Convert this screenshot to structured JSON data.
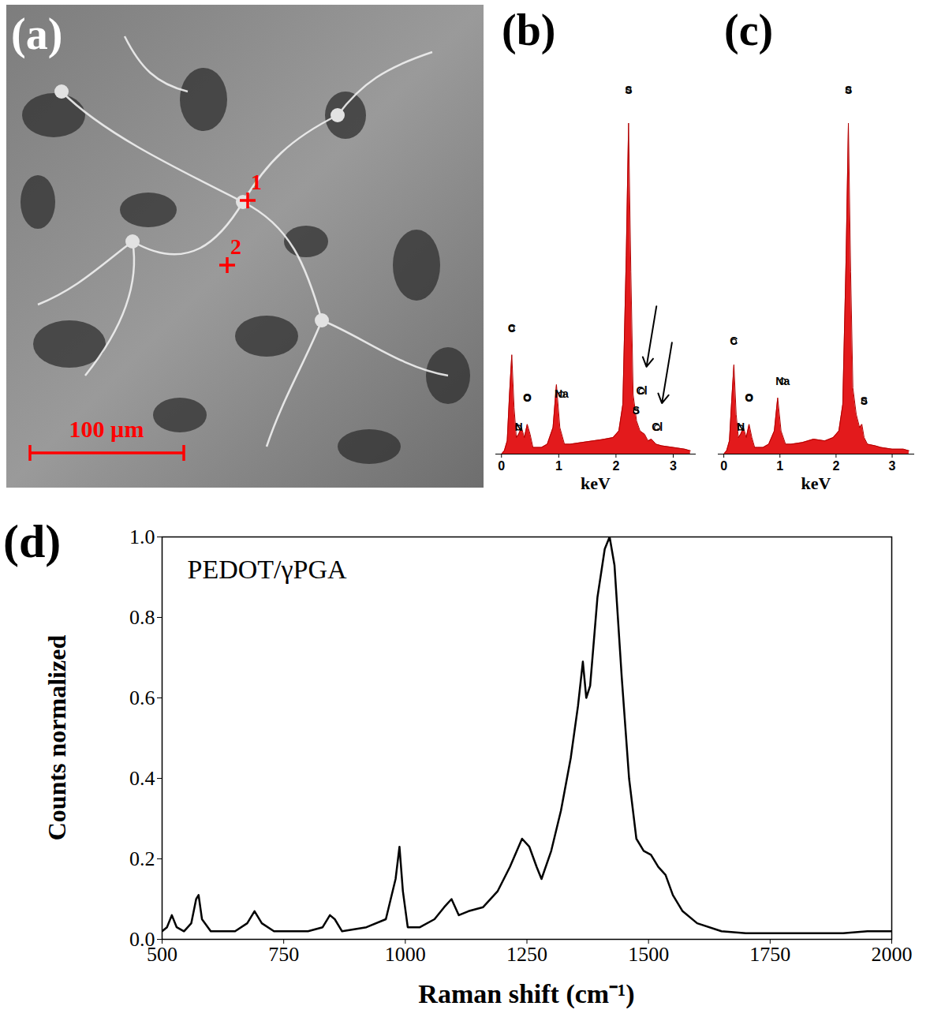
{
  "chart_data": [
    {
      "type": "image",
      "panel": "(a)",
      "markers": [
        "1",
        "2"
      ],
      "scale_bar": "100 µm"
    },
    {
      "type": "area",
      "panel": "(b)",
      "color": "#e31a1c",
      "xlabel": "keV",
      "tick_labels": "x",
      "xlim": [
        -0.1,
        3.4
      ],
      "ylim": [
        0,
        118
      ],
      "xticks": [
        0,
        1,
        2,
        3
      ],
      "x": [
        0,
        0.05,
        0.1,
        0.14,
        0.18,
        0.22,
        0.26,
        0.3,
        0.35,
        0.4,
        0.45,
        0.5,
        0.55,
        0.6,
        0.7,
        0.8,
        0.9,
        0.96,
        1.02,
        1.1,
        1.2,
        1.4,
        1.6,
        1.8,
        1.95,
        2.05,
        2.12,
        2.18,
        2.22,
        2.26,
        2.3,
        2.36,
        2.42,
        2.5,
        2.56,
        2.62,
        2.7,
        2.8,
        3.0,
        3.2,
        3.3
      ],
      "values": [
        0,
        1,
        4,
        18,
        30,
        14,
        5,
        6,
        8,
        5,
        9,
        6,
        2,
        2,
        2,
        3,
        8,
        21,
        8,
        3,
        3,
        3.5,
        4,
        4.5,
        5,
        7,
        15,
        60,
        100,
        55,
        18,
        10,
        7,
        6,
        4,
        4.5,
        3,
        2.5,
        2,
        1.5,
        1
      ],
      "annotations": [
        {
          "text": "C",
          "x": 0.18,
          "y": 38
        },
        {
          "text": "N",
          "x": 0.3,
          "y": 8
        },
        {
          "text": "O",
          "x": 0.45,
          "y": 17
        },
        {
          "text": "Na",
          "x": 1.05,
          "y": 18
        },
        {
          "text": "S",
          "x": 2.22,
          "y": 110
        },
        {
          "text": "Cl",
          "x": 2.45,
          "y": 19
        },
        {
          "text": "S",
          "x": 2.35,
          "y": 13
        },
        {
          "text": "Cl",
          "x": 2.72,
          "y": 8
        }
      ]
    },
    {
      "type": "area",
      "panel": "(c)",
      "color": "#e31a1c",
      "xlabel": "keV",
      "tick_labels": "x",
      "xlim": [
        -0.1,
        3.4
      ],
      "ylim": [
        0,
        118
      ],
      "xticks": [
        0,
        1,
        2,
        3
      ],
      "x": [
        0,
        0.05,
        0.1,
        0.14,
        0.18,
        0.22,
        0.26,
        0.3,
        0.35,
        0.4,
        0.45,
        0.5,
        0.55,
        0.6,
        0.7,
        0.8,
        0.9,
        0.96,
        1.02,
        1.1,
        1.2,
        1.4,
        1.6,
        1.8,
        1.95,
        2.05,
        2.12,
        2.18,
        2.22,
        2.26,
        2.3,
        2.36,
        2.42,
        2.46,
        2.5,
        2.56,
        2.7,
        2.8,
        3.0,
        3.2,
        3.3
      ],
      "values": [
        0,
        1,
        4,
        16,
        27,
        12,
        5,
        6,
        8,
        5,
        9,
        5,
        2,
        2,
        2,
        3,
        7,
        17,
        7,
        3,
        3,
        3.5,
        4.5,
        4,
        5,
        7,
        15,
        60,
        100,
        55,
        20,
        12,
        8,
        9,
        5,
        3,
        2.5,
        2,
        1.5,
        1.5,
        1
      ],
      "annotations": [
        {
          "text": "C",
          "x": 0.18,
          "y": 34
        },
        {
          "text": "N",
          "x": 0.3,
          "y": 8
        },
        {
          "text": "O",
          "x": 0.45,
          "y": 17
        },
        {
          "text": "Na",
          "x": 1.05,
          "y": 22
        },
        {
          "text": "S",
          "x": 2.22,
          "y": 110
        },
        {
          "text": "S",
          "x": 2.5,
          "y": 16
        }
      ]
    },
    {
      "type": "line",
      "panel": "(d)",
      "title": "PEDOT/γPGA",
      "color": "#000000",
      "xlabel": "Raman shift (cm⁻¹)",
      "ylabel": "Counts normalized",
      "xlim": [
        500,
        2000
      ],
      "ylim": [
        0,
        1
      ],
      "xticks": [
        500,
        750,
        1000,
        1250,
        1500,
        1750,
        2000
      ],
      "yticks": [
        {
          "value": 0,
          "label": "0.0"
        },
        0.2,
        0.4,
        0.6,
        0.8,
        {
          "value": 1,
          "label": "1.0"
        }
      ],
      "x": [
        500,
        510,
        520,
        530,
        545,
        560,
        570,
        575,
        582,
        600,
        650,
        675,
        690,
        705,
        730,
        800,
        830,
        845,
        855,
        870,
        920,
        960,
        980,
        988,
        995,
        1005,
        1030,
        1060,
        1080,
        1095,
        1110,
        1130,
        1160,
        1190,
        1215,
        1240,
        1255,
        1270,
        1280,
        1300,
        1320,
        1340,
        1355,
        1365,
        1372,
        1380,
        1395,
        1410,
        1420,
        1430,
        1445,
        1460,
        1475,
        1490,
        1505,
        1520,
        1535,
        1550,
        1570,
        1600,
        1650,
        1700,
        1800,
        1900,
        1950,
        1990,
        2000
      ],
      "values": [
        0.02,
        0.03,
        0.06,
        0.03,
        0.02,
        0.04,
        0.1,
        0.11,
        0.05,
        0.02,
        0.02,
        0.04,
        0.07,
        0.04,
        0.02,
        0.02,
        0.03,
        0.06,
        0.05,
        0.02,
        0.03,
        0.05,
        0.15,
        0.23,
        0.12,
        0.03,
        0.03,
        0.05,
        0.08,
        0.1,
        0.06,
        0.07,
        0.08,
        0.12,
        0.18,
        0.25,
        0.23,
        0.18,
        0.15,
        0.22,
        0.32,
        0.45,
        0.58,
        0.69,
        0.6,
        0.63,
        0.85,
        0.97,
        1.0,
        0.93,
        0.65,
        0.4,
        0.25,
        0.22,
        0.21,
        0.18,
        0.16,
        0.11,
        0.07,
        0.04,
        0.02,
        0.015,
        0.015,
        0.015,
        0.02,
        0.02,
        0.02
      ]
    }
  ]
}
